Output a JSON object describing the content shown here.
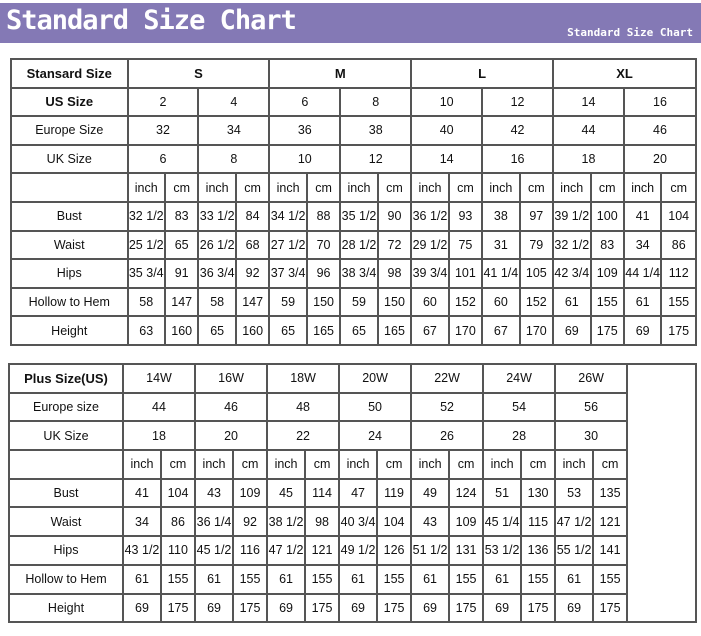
{
  "banner": {
    "title": "Standard Size Chart",
    "subtitle": "Standard Size Chart",
    "color": "#8479b5"
  },
  "standard": {
    "corner": "Stansard Size",
    "groups": [
      {
        "label": "S",
        "span": 2
      },
      {
        "label": "M",
        "span": 2
      },
      {
        "label": "L",
        "span": 2
      },
      {
        "label": "XL",
        "span": 2
      }
    ],
    "size_rows": [
      {
        "label": "US Size",
        "values": [
          "2",
          "4",
          "6",
          "8",
          "10",
          "12",
          "14",
          "16"
        ]
      },
      {
        "label": "Europe Size",
        "values": [
          "32",
          "34",
          "36",
          "38",
          "40",
          "42",
          "44",
          "46"
        ]
      },
      {
        "label": "UK Size",
        "values": [
          "6",
          "8",
          "10",
          "12",
          "14",
          "16",
          "18",
          "20"
        ]
      }
    ],
    "units": [
      "inch",
      "cm"
    ],
    "measure_rows": [
      {
        "label": "Bust",
        "values": [
          "32 1/2",
          "83",
          "33 1/2",
          "84",
          "34 1/2",
          "88",
          "35 1/2",
          "90",
          "36 1/2",
          "93",
          "38",
          "97",
          "39 1/2",
          "100",
          "41",
          "104"
        ]
      },
      {
        "label": "Waist",
        "values": [
          "25 1/2",
          "65",
          "26 1/2",
          "68",
          "27 1/2",
          "70",
          "28 1/2",
          "72",
          "29 1/2",
          "75",
          "31",
          "79",
          "32 1/2",
          "83",
          "34",
          "86"
        ]
      },
      {
        "label": "Hips",
        "values": [
          "35 3/4",
          "91",
          "36 3/4",
          "92",
          "37 3/4",
          "96",
          "38 3/4",
          "98",
          "39 3/4",
          "101",
          "41 1/4",
          "105",
          "42 3/4",
          "109",
          "44 1/4",
          "112"
        ]
      },
      {
        "label": "Hollow to Hem",
        "values": [
          "58",
          "147",
          "58",
          "147",
          "59",
          "150",
          "59",
          "150",
          "60",
          "152",
          "60",
          "152",
          "61",
          "155",
          "61",
          "155"
        ]
      },
      {
        "label": "Height",
        "values": [
          "63",
          "160",
          "65",
          "160",
          "65",
          "165",
          "65",
          "165",
          "67",
          "170",
          "67",
          "170",
          "69",
          "175",
          "69",
          "175"
        ]
      }
    ]
  },
  "plus": {
    "corner": "Plus Size(US)",
    "sizes": [
      "14W",
      "16W",
      "18W",
      "20W",
      "22W",
      "24W",
      "26W"
    ],
    "size_rows": [
      {
        "label": "Europe size",
        "values": [
          "44",
          "46",
          "48",
          "50",
          "52",
          "54",
          "56"
        ]
      },
      {
        "label": "UK Size",
        "values": [
          "18",
          "20",
          "22",
          "24",
          "26",
          "28",
          "30"
        ]
      }
    ],
    "units": [
      "inch",
      "cm"
    ],
    "measure_rows": [
      {
        "label": "Bust",
        "values": [
          "41",
          "104",
          "43",
          "109",
          "45",
          "114",
          "47",
          "119",
          "49",
          "124",
          "51",
          "130",
          "53",
          "135"
        ]
      },
      {
        "label": "Waist",
        "values": [
          "34",
          "86",
          "36 1/4",
          "92",
          "38 1/2",
          "98",
          "40 3/4",
          "104",
          "43",
          "109",
          "45 1/4",
          "115",
          "47 1/2",
          "121"
        ]
      },
      {
        "label": "Hips",
        "values": [
          "43 1/2",
          "110",
          "45 1/2",
          "116",
          "47 1/2",
          "121",
          "49 1/2",
          "126",
          "51 1/2",
          "131",
          "53 1/2",
          "136",
          "55 1/2",
          "141"
        ]
      },
      {
        "label": "Hollow to Hem",
        "values": [
          "61",
          "155",
          "61",
          "155",
          "61",
          "155",
          "61",
          "155",
          "61",
          "155",
          "61",
          "155",
          "61",
          "155"
        ]
      },
      {
        "label": "Height",
        "values": [
          "69",
          "175",
          "69",
          "175",
          "69",
          "175",
          "69",
          "175",
          "69",
          "175",
          "69",
          "175",
          "69",
          "175"
        ]
      }
    ]
  }
}
